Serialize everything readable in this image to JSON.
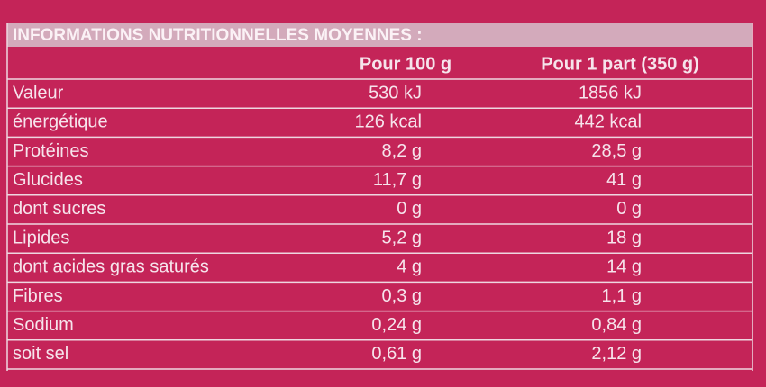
{
  "table": {
    "title": "INFORMATIONS NUTRITIONNELLES MOYENNES :",
    "columns": [
      "Pour 100 g",
      "Pour 1 part (350 g)"
    ],
    "rows": [
      [
        "Valeur",
        "530 kJ",
        "1856 kJ"
      ],
      [
        "énergétique",
        "126 kcal",
        "442 kcal"
      ],
      [
        "Protéines",
        "8,2 g",
        "28,5 g"
      ],
      [
        "Glucides",
        "11,7 g",
        "41 g"
      ],
      [
        "dont sucres",
        "0 g",
        "0 g"
      ],
      [
        "Lipides",
        "5,2 g",
        "18 g"
      ],
      [
        "dont acides gras saturés",
        "4 g",
        "14 g"
      ],
      [
        "Fibres",
        "0,3 g",
        "1,1 g"
      ],
      [
        "Sodium",
        "0,24 g",
        "0,84 g"
      ],
      [
        "soit sel",
        "0,61 g",
        "2,12 g"
      ]
    ]
  }
}
